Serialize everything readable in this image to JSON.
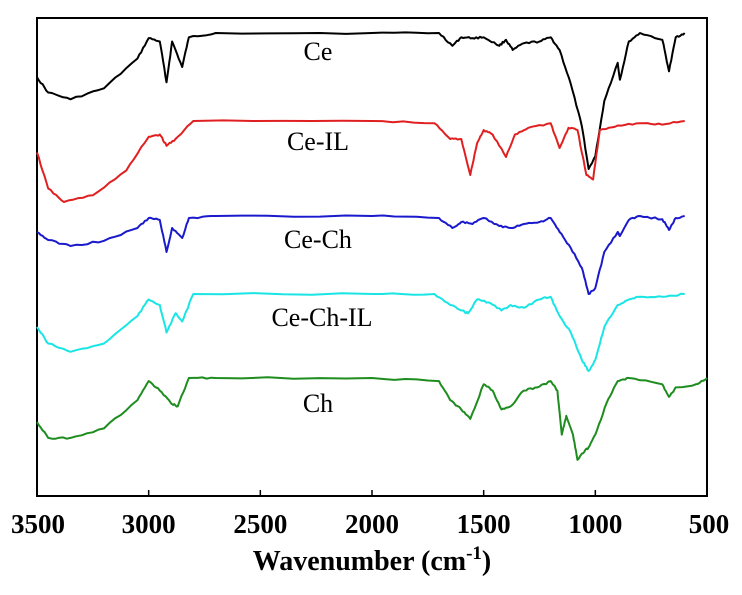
{
  "chart_data": {
    "type": "line",
    "xlabel": "Wavenumber (cm",
    "xlabel_sup": "-1",
    "xlabel_close": ")",
    "xlim": [
      3500,
      500
    ],
    "x_ticks": [
      3500,
      3000,
      2500,
      2000,
      1500,
      1000,
      500
    ],
    "x_tick_labels": [
      "3500",
      "3000",
      "2500",
      "2000",
      "1500",
      "1000",
      "500"
    ],
    "ylabel": "",
    "y_axis": "relative transmittance (offset, unlabeled)",
    "grid": false,
    "legend": "none (series labeled inline)",
    "series": [
      {
        "name": "Ce",
        "color": "#000000",
        "points": [
          [
            3500,
            0.52
          ],
          [
            3450,
            0.7
          ],
          [
            3350,
            0.78
          ],
          [
            3200,
            0.65
          ],
          [
            3050,
            0.3
          ],
          [
            3000,
            0.06
          ],
          [
            2950,
            0.1
          ],
          [
            2920,
            0.58
          ],
          [
            2895,
            0.1
          ],
          [
            2850,
            0.4
          ],
          [
            2820,
            0.05
          ],
          [
            2700,
            0.0
          ],
          [
            2000,
            0.0
          ],
          [
            1700,
            0.0
          ],
          [
            1640,
            0.15
          ],
          [
            1600,
            0.05
          ],
          [
            1550,
            0.06
          ],
          [
            1500,
            0.05
          ],
          [
            1430,
            0.15
          ],
          [
            1400,
            0.08
          ],
          [
            1370,
            0.2
          ],
          [
            1320,
            0.12
          ],
          [
            1250,
            0.1
          ],
          [
            1200,
            0.05
          ],
          [
            1160,
            0.2
          ],
          [
            1110,
            0.6
          ],
          [
            1060,
            1.1
          ],
          [
            1030,
            1.6
          ],
          [
            1000,
            1.45
          ],
          [
            960,
            0.8
          ],
          [
            900,
            0.35
          ],
          [
            890,
            0.55
          ],
          [
            850,
            0.1
          ],
          [
            800,
            0.0
          ],
          [
            700,
            0.08
          ],
          [
            670,
            0.45
          ],
          [
            640,
            0.05
          ],
          [
            600,
            0.0
          ]
        ]
      },
      {
        "name": "Ce-IL",
        "color": "#e02020",
        "points": [
          [
            3500,
            0.7
          ],
          [
            3450,
            1.5
          ],
          [
            3380,
            1.8
          ],
          [
            3250,
            1.65
          ],
          [
            3100,
            1.1
          ],
          [
            3000,
            0.35
          ],
          [
            2950,
            0.3
          ],
          [
            2920,
            0.55
          ],
          [
            2880,
            0.4
          ],
          [
            2800,
            0.0
          ],
          [
            2000,
            0.0
          ],
          [
            1720,
            0.05
          ],
          [
            1650,
            0.4
          ],
          [
            1600,
            0.4
          ],
          [
            1560,
            1.2
          ],
          [
            1530,
            0.5
          ],
          [
            1500,
            0.2
          ],
          [
            1460,
            0.3
          ],
          [
            1400,
            0.8
          ],
          [
            1360,
            0.3
          ],
          [
            1300,
            0.15
          ],
          [
            1200,
            0.05
          ],
          [
            1160,
            0.6
          ],
          [
            1120,
            0.15
          ],
          [
            1080,
            0.2
          ],
          [
            1040,
            1.2
          ],
          [
            1010,
            1.3
          ],
          [
            980,
            0.2
          ],
          [
            900,
            0.1
          ],
          [
            800,
            0.05
          ],
          [
            700,
            0.08
          ],
          [
            600,
            0.0
          ]
        ]
      },
      {
        "name": "Ce-Ch",
        "color": "#1a1acc",
        "points": [
          [
            3500,
            0.4
          ],
          [
            3450,
            0.6
          ],
          [
            3350,
            0.75
          ],
          [
            3200,
            0.62
          ],
          [
            3050,
            0.3
          ],
          [
            3000,
            0.05
          ],
          [
            2950,
            0.1
          ],
          [
            2920,
            0.9
          ],
          [
            2895,
            0.3
          ],
          [
            2850,
            0.55
          ],
          [
            2820,
            0.05
          ],
          [
            2700,
            0.0
          ],
          [
            2000,
            0.0
          ],
          [
            1700,
            0.05
          ],
          [
            1640,
            0.3
          ],
          [
            1600,
            0.15
          ],
          [
            1550,
            0.2
          ],
          [
            1500,
            0.05
          ],
          [
            1430,
            0.25
          ],
          [
            1380,
            0.3
          ],
          [
            1320,
            0.2
          ],
          [
            1250,
            0.15
          ],
          [
            1200,
            0.05
          ],
          [
            1160,
            0.4
          ],
          [
            1110,
            0.8
          ],
          [
            1060,
            1.3
          ],
          [
            1030,
            1.95
          ],
          [
            1000,
            1.8
          ],
          [
            960,
            0.9
          ],
          [
            900,
            0.4
          ],
          [
            890,
            0.5
          ],
          [
            850,
            0.1
          ],
          [
            800,
            0.0
          ],
          [
            700,
            0.08
          ],
          [
            670,
            0.35
          ],
          [
            640,
            0.05
          ],
          [
            600,
            0.0
          ]
        ]
      },
      {
        "name": "Ce-Ch-IL",
        "color": "#19e5e5",
        "points": [
          [
            3500,
            0.6
          ],
          [
            3450,
            0.9
          ],
          [
            3350,
            1.05
          ],
          [
            3200,
            0.9
          ],
          [
            3050,
            0.4
          ],
          [
            3000,
            0.1
          ],
          [
            2950,
            0.2
          ],
          [
            2920,
            0.7
          ],
          [
            2880,
            0.35
          ],
          [
            2850,
            0.5
          ],
          [
            2800,
            0.0
          ],
          [
            2000,
            0.0
          ],
          [
            1720,
            0.0
          ],
          [
            1650,
            0.2
          ],
          [
            1600,
            0.3
          ],
          [
            1570,
            0.35
          ],
          [
            1530,
            0.1
          ],
          [
            1480,
            0.15
          ],
          [
            1420,
            0.3
          ],
          [
            1380,
            0.2
          ],
          [
            1320,
            0.25
          ],
          [
            1250,
            0.1
          ],
          [
            1200,
            0.05
          ],
          [
            1160,
            0.4
          ],
          [
            1110,
            0.7
          ],
          [
            1060,
            1.2
          ],
          [
            1030,
            1.4
          ],
          [
            1000,
            1.2
          ],
          [
            960,
            0.6
          ],
          [
            900,
            0.2
          ],
          [
            850,
            0.1
          ],
          [
            800,
            0.05
          ],
          [
            700,
            0.05
          ],
          [
            600,
            0.0
          ]
        ]
      },
      {
        "name": "Ch",
        "color": "#1e8c1e",
        "points": [
          [
            3500,
            0.7
          ],
          [
            3450,
            0.95
          ],
          [
            3350,
            0.95
          ],
          [
            3200,
            0.8
          ],
          [
            3050,
            0.35
          ],
          [
            3000,
            0.05
          ],
          [
            2950,
            0.2
          ],
          [
            2900,
            0.4
          ],
          [
            2870,
            0.45
          ],
          [
            2820,
            0.0
          ],
          [
            2700,
            0.0
          ],
          [
            2000,
            0.0
          ],
          [
            1700,
            0.05
          ],
          [
            1650,
            0.35
          ],
          [
            1600,
            0.5
          ],
          [
            1560,
            0.65
          ],
          [
            1500,
            0.1
          ],
          [
            1460,
            0.2
          ],
          [
            1420,
            0.5
          ],
          [
            1380,
            0.45
          ],
          [
            1320,
            0.2
          ],
          [
            1260,
            0.15
          ],
          [
            1200,
            0.05
          ],
          [
            1170,
            0.2
          ],
          [
            1150,
            0.9
          ],
          [
            1130,
            0.6
          ],
          [
            1100,
            0.9
          ],
          [
            1080,
            1.3
          ],
          [
            1060,
            1.2
          ],
          [
            1030,
            1.1
          ],
          [
            1000,
            0.9
          ],
          [
            950,
            0.4
          ],
          [
            900,
            0.05
          ],
          [
            850,
            0.0
          ],
          [
            700,
            0.1
          ],
          [
            670,
            0.3
          ],
          [
            640,
            0.15
          ],
          [
            550,
            0.1
          ],
          [
            500,
            0.0
          ]
        ]
      }
    ]
  }
}
